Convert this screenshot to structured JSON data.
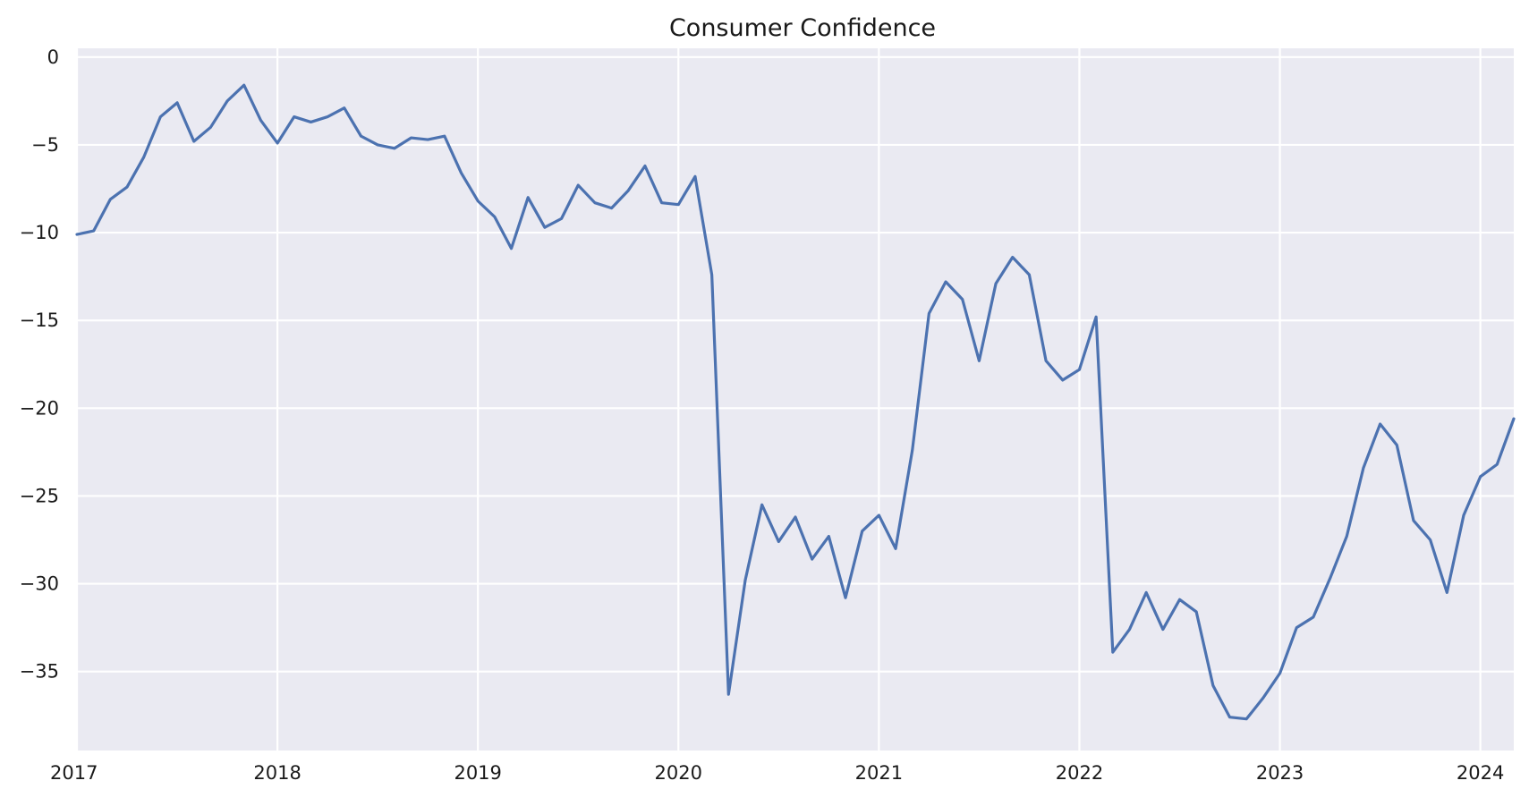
{
  "chart_data": {
    "type": "line",
    "title": "Consumer Confidence",
    "xlabel": "",
    "ylabel": "",
    "x_start": "2017-01",
    "x_end": "2024-03",
    "xlim": [
      "2017-01",
      "2024-03"
    ],
    "ylim": [
      -39.5,
      0.5
    ],
    "x_ticks": [
      {
        "label": "2017",
        "date": "2017-01"
      },
      {
        "label": "2018",
        "date": "2018-01"
      },
      {
        "label": "2019",
        "date": "2019-01"
      },
      {
        "label": "2020",
        "date": "2020-01"
      },
      {
        "label": "2021",
        "date": "2021-01"
      },
      {
        "label": "2022",
        "date": "2022-01"
      },
      {
        "label": "2023",
        "date": "2023-01"
      },
      {
        "label": "2024",
        "date": "2024-01"
      }
    ],
    "y_ticks": [
      {
        "label": "0",
        "value": 0
      },
      {
        "label": "−5",
        "value": -5
      },
      {
        "label": "−10",
        "value": -10
      },
      {
        "label": "−15",
        "value": -15
      },
      {
        "label": "−20",
        "value": -20
      },
      {
        "label": "−25",
        "value": -25
      },
      {
        "label": "−30",
        "value": -30
      },
      {
        "label": "−35",
        "value": -35
      }
    ],
    "grid": true,
    "legend": "none",
    "colors": {
      "background": "#eaeaf2",
      "grid": "#ffffff",
      "line": "#4c72b0"
    },
    "series": [
      {
        "values": [
          -10.1,
          -9.9,
          -8.1,
          -7.4,
          -5.7,
          -3.4,
          -2.6,
          -4.8,
          -4.0,
          -2.5,
          -1.6,
          -3.6,
          -4.9,
          -3.4,
          -3.7,
          -3.4,
          -2.9,
          -4.5,
          -5.0,
          -5.2,
          -4.6,
          -4.7,
          -4.5,
          -6.6,
          -8.2,
          -9.1,
          -10.9,
          -8.0,
          -9.7,
          -9.2,
          -7.3,
          -8.3,
          -8.6,
          -7.6,
          -6.2,
          -8.3,
          -8.4,
          -6.8,
          -12.4,
          -36.3,
          -29.8,
          -25.5,
          -27.6,
          -26.2,
          -28.6,
          -27.3,
          -30.8,
          -27.0,
          -26.1,
          -28.0,
          -22.4,
          -14.6,
          -12.8,
          -13.8,
          -17.3,
          -12.9,
          -11.4,
          -12.4,
          -17.3,
          -18.4,
          -17.8,
          -14.8,
          -33.9,
          -32.6,
          -30.5,
          -32.6,
          -30.9,
          -31.6,
          -35.8,
          -37.6,
          -37.7,
          -36.5,
          -35.1,
          -32.5,
          -31.9,
          -29.7,
          -27.3,
          -23.4,
          -20.9,
          -22.1,
          -26.4,
          -27.5,
          -30.5,
          -26.1,
          -23.9,
          -23.2,
          -20.6
        ]
      }
    ]
  }
}
